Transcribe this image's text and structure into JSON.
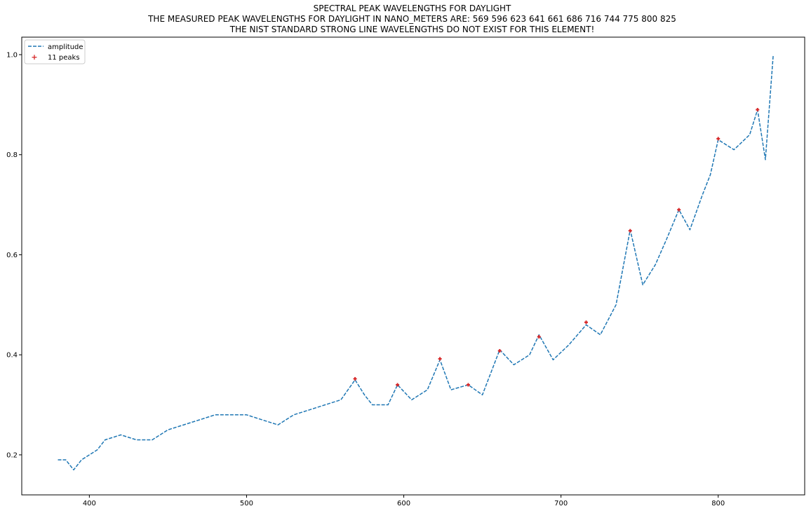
{
  "titles": {
    "line1": "SPECTRAL PEAK WAVELENGTHS FOR DAYLIGHT",
    "line2": "THE MEASURED PEAK WAVELENGTHS FOR DAYLIGHT IN NANO_METERS ARE: 569 596 623 641 661 686 716 744 775 800 825",
    "line3": "THE NIST STANDARD STRONG LINE WAVELENGTHS DO NOT EXIST FOR THIS ELEMENT!"
  },
  "legend": {
    "series_label": "amplitude",
    "peaks_label": "11 peaks"
  },
  "colors": {
    "line": "#1f77b4",
    "peak": "#d62728"
  },
  "chart_data": {
    "type": "line",
    "title": "SPECTRAL PEAK WAVELENGTHS FOR DAYLIGHT",
    "xlabel": "",
    "ylabel": "",
    "xlim": [
      357,
      855
    ],
    "ylim": [
      0.12,
      1.035
    ],
    "xticks": [
      400,
      500,
      600,
      700,
      800
    ],
    "yticks": [
      0.2,
      0.4,
      0.6,
      0.8,
      1.0
    ],
    "series": [
      {
        "name": "amplitude",
        "style": "dashed",
        "x": [
          380,
          385,
          390,
          395,
          400,
          405,
          410,
          420,
          430,
          440,
          450,
          460,
          470,
          480,
          490,
          500,
          510,
          520,
          530,
          540,
          550,
          560,
          569,
          575,
          580,
          590,
          596,
          605,
          615,
          623,
          630,
          641,
          650,
          661,
          670,
          680,
          686,
          695,
          705,
          716,
          725,
          735,
          744,
          752,
          760,
          767,
          775,
          782,
          790,
          795,
          800,
          810,
          820,
          825,
          830,
          835
        ],
        "y": [
          0.19,
          0.19,
          0.17,
          0.19,
          0.2,
          0.21,
          0.23,
          0.24,
          0.23,
          0.23,
          0.25,
          0.26,
          0.27,
          0.28,
          0.28,
          0.28,
          0.27,
          0.26,
          0.28,
          0.29,
          0.3,
          0.31,
          0.35,
          0.32,
          0.3,
          0.3,
          0.34,
          0.31,
          0.33,
          0.39,
          0.33,
          0.34,
          0.32,
          0.41,
          0.38,
          0.4,
          0.44,
          0.39,
          0.42,
          0.46,
          0.44,
          0.5,
          0.65,
          0.54,
          0.58,
          0.63,
          0.69,
          0.65,
          0.72,
          0.76,
          0.83,
          0.81,
          0.84,
          0.89,
          0.79,
          1.0
        ]
      },
      {
        "name": "11 peaks",
        "style": "markers",
        "x": [
          569,
          596,
          623,
          641,
          661,
          686,
          716,
          744,
          775,
          800,
          825
        ],
        "y": [
          0.352,
          0.34,
          0.392,
          0.34,
          0.408,
          0.436,
          0.465,
          0.648,
          0.69,
          0.832,
          0.89
        ]
      }
    ]
  }
}
